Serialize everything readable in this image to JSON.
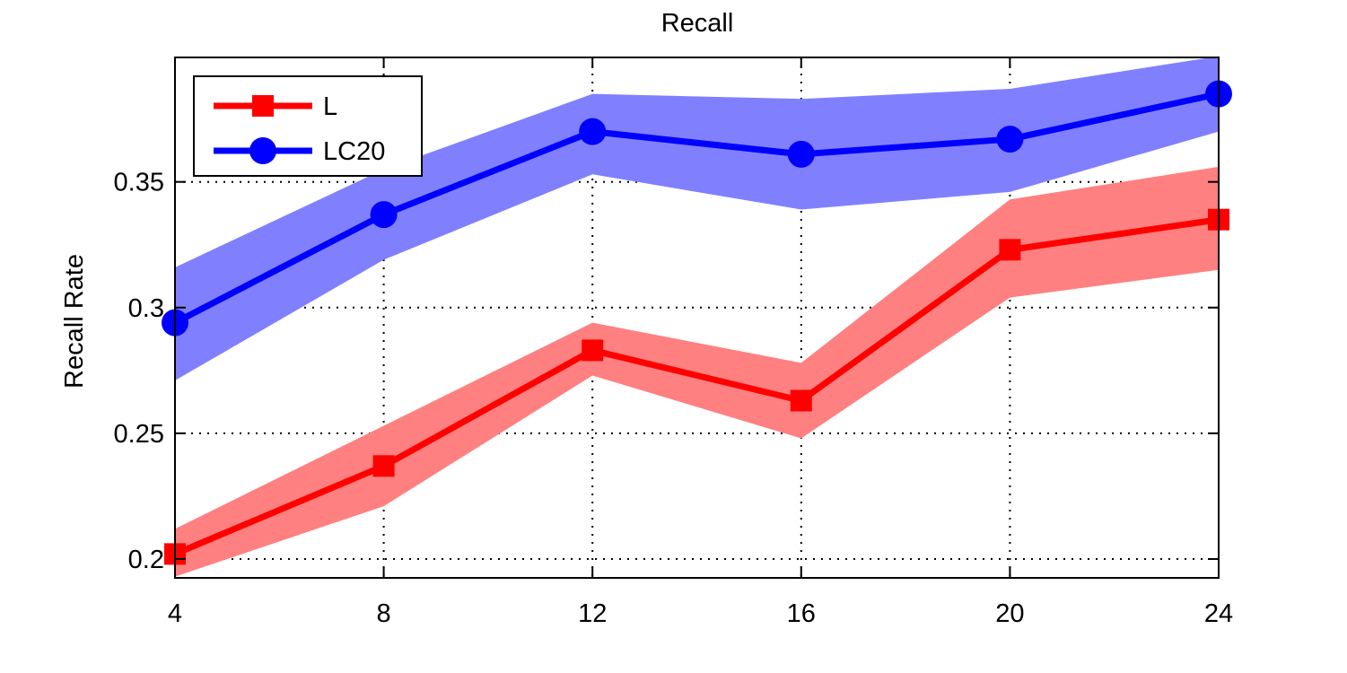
{
  "chart_data": {
    "type": "line",
    "title": "Recall",
    "xlabel": "",
    "ylabel": "Recall Rate",
    "x": [
      4,
      8,
      12,
      16,
      20,
      24
    ],
    "xlim": [
      4,
      24
    ],
    "ylim": [
      0.1925,
      0.3995
    ],
    "xticks": [
      4,
      8,
      12,
      16,
      20,
      24
    ],
    "yticks": [
      0.2,
      0.25,
      0.3,
      0.35
    ],
    "ytick_labels": [
      "0.2",
      "0.25",
      "0.3",
      "0.35"
    ],
    "grid": true,
    "legend_position": "top-left",
    "series": [
      {
        "name": "L",
        "color": "#ff0000",
        "band_color": "#ff8080",
        "marker": "square",
        "values": [
          0.202,
          0.237,
          0.283,
          0.263,
          0.323,
          0.335
        ],
        "lower": [
          0.193,
          0.221,
          0.273,
          0.248,
          0.304,
          0.315
        ],
        "upper": [
          0.212,
          0.253,
          0.294,
          0.278,
          0.343,
          0.356
        ]
      },
      {
        "name": "LC20",
        "color": "#0000ff",
        "band_color": "#8080ff",
        "marker": "circle",
        "values": [
          0.294,
          0.337,
          0.37,
          0.361,
          0.367,
          0.385
        ],
        "lower": [
          0.271,
          0.319,
          0.353,
          0.339,
          0.346,
          0.37
        ],
        "upper": [
          0.316,
          0.355,
          0.385,
          0.383,
          0.387,
          0.4
        ]
      }
    ]
  }
}
